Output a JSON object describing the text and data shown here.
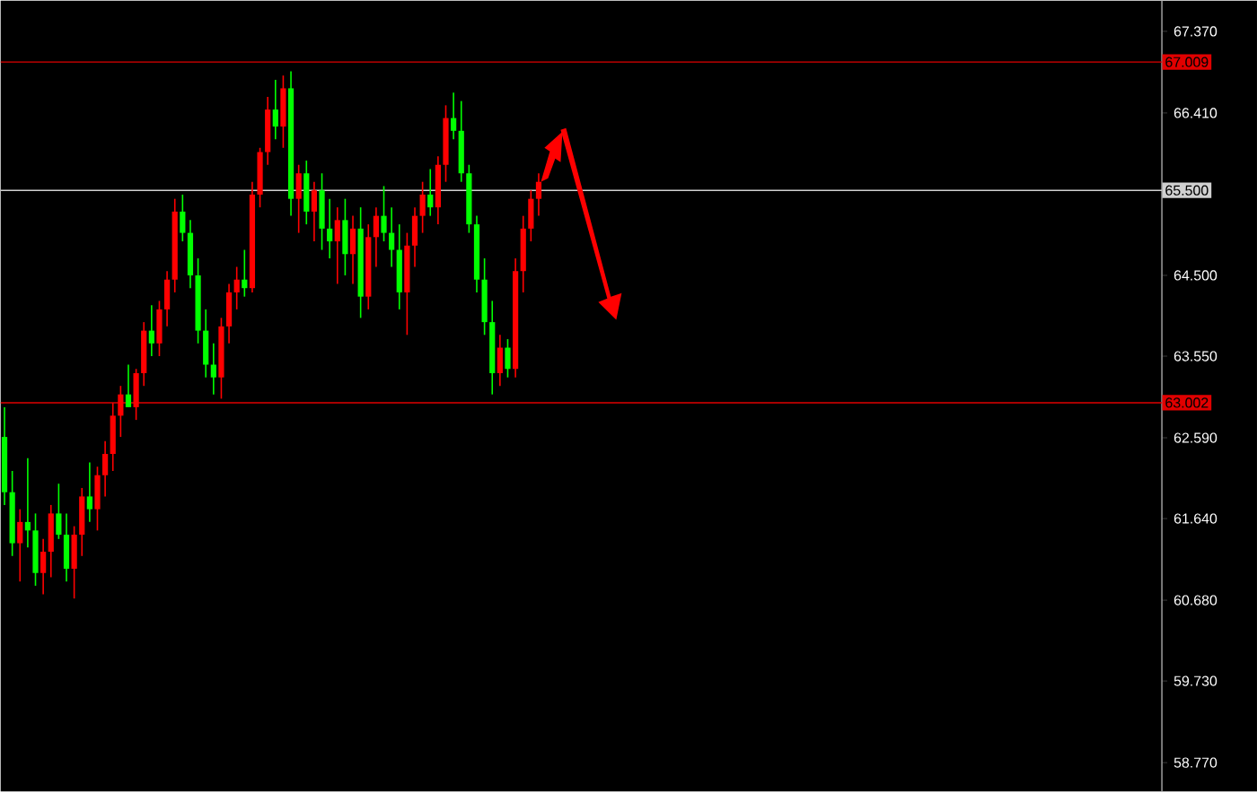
{
  "chart_data": {
    "type": "candlestick",
    "categories": [
      null,
      null,
      null,
      null,
      null,
      null,
      null,
      null,
      null,
      null,
      null,
      null,
      null,
      null,
      null,
      null,
      null,
      null,
      null,
      null,
      null,
      null,
      null,
      null,
      null,
      null,
      null,
      null,
      null,
      null,
      null,
      null,
      null,
      null,
      null,
      null,
      null,
      null,
      null,
      null,
      null,
      null,
      null,
      null,
      null,
      null,
      null,
      null,
      null,
      null,
      null,
      null,
      null,
      null,
      null,
      null,
      null,
      null,
      null,
      null,
      null,
      null,
      null,
      null,
      null,
      null,
      null,
      null,
      null,
      null,
      null,
      null,
      null,
      null,
      null,
      null,
      null,
      null,
      null,
      null,
      null,
      null,
      null,
      null,
      null,
      null,
      null,
      null,
      null,
      null,
      null,
      null,
      null,
      null,
      null,
      null,
      null,
      null,
      null,
      null,
      null,
      null,
      null,
      null,
      null,
      null,
      null,
      null,
      null,
      null,
      null,
      null,
      null,
      null,
      null,
      null,
      null,
      null,
      null,
      null,
      null,
      null,
      null,
      null,
      null,
      null,
      null,
      null,
      null,
      null,
      null,
      null,
      null,
      null,
      null,
      null,
      null,
      null,
      null,
      null,
      null,
      null,
      null,
      null,
      null,
      null,
      null,
      null,
      null,
      null
    ],
    "ohlc": [
      [
        62.6,
        62.95,
        61.8,
        61.95
      ],
      [
        61.95,
        62.2,
        61.2,
        61.35
      ],
      [
        61.35,
        61.75,
        60.9,
        61.6
      ],
      [
        61.6,
        62.35,
        61.3,
        61.5
      ],
      [
        61.5,
        61.7,
        60.85,
        61.0
      ],
      [
        61.0,
        61.4,
        60.75,
        61.25
      ],
      [
        61.25,
        61.8,
        60.95,
        61.7
      ],
      [
        61.7,
        62.05,
        61.4,
        61.45
      ],
      [
        61.45,
        61.7,
        60.9,
        61.05
      ],
      [
        61.05,
        61.55,
        60.7,
        61.45
      ],
      [
        61.45,
        62.0,
        61.2,
        61.9
      ],
      [
        61.9,
        62.3,
        61.6,
        61.75
      ],
      [
        61.75,
        62.25,
        61.5,
        62.15
      ],
      [
        62.15,
        62.55,
        61.9,
        62.4
      ],
      [
        62.4,
        63.0,
        62.2,
        62.85
      ],
      [
        62.85,
        63.2,
        62.6,
        63.1
      ],
      [
        63.1,
        63.45,
        62.95,
        62.95
      ],
      [
        62.95,
        63.4,
        62.8,
        63.35
      ],
      [
        63.35,
        63.95,
        63.2,
        63.85
      ],
      [
        63.85,
        64.15,
        63.55,
        63.7
      ],
      [
        63.7,
        64.2,
        63.55,
        64.1
      ],
      [
        64.1,
        64.55,
        63.9,
        64.45
      ],
      [
        64.45,
        65.4,
        64.3,
        65.25
      ],
      [
        65.25,
        65.45,
        64.9,
        65.0
      ],
      [
        65.0,
        65.15,
        64.35,
        64.5
      ],
      [
        64.5,
        64.7,
        63.7,
        63.85
      ],
      [
        63.85,
        64.1,
        63.3,
        63.45
      ],
      [
        63.45,
        63.7,
        63.1,
        63.3
      ],
      [
        63.3,
        64.0,
        63.05,
        63.9
      ],
      [
        63.9,
        64.4,
        63.7,
        64.3
      ],
      [
        64.3,
        64.6,
        64.1,
        64.45
      ],
      [
        64.45,
        64.8,
        64.25,
        64.35
      ],
      [
        64.35,
        65.6,
        64.3,
        65.45
      ],
      [
        65.45,
        66.0,
        65.3,
        65.95
      ],
      [
        65.95,
        66.6,
        65.8,
        66.45
      ],
      [
        66.45,
        66.8,
        66.1,
        66.25
      ],
      [
        66.25,
        66.85,
        66.0,
        66.7
      ],
      [
        66.7,
        66.9,
        65.2,
        65.4
      ],
      [
        65.4,
        65.8,
        65.0,
        65.7
      ],
      [
        65.7,
        65.85,
        65.1,
        65.25
      ],
      [
        65.25,
        65.6,
        64.9,
        65.5
      ],
      [
        65.5,
        65.7,
        64.8,
        65.05
      ],
      [
        65.05,
        65.4,
        64.7,
        64.9
      ],
      [
        64.9,
        65.3,
        64.4,
        65.15
      ],
      [
        65.15,
        65.4,
        64.5,
        64.75
      ],
      [
        64.75,
        65.2,
        64.4,
        65.05
      ],
      [
        65.05,
        65.3,
        64.0,
        64.25
      ],
      [
        64.25,
        65.1,
        64.1,
        64.95
      ],
      [
        64.95,
        65.3,
        64.6,
        65.2
      ],
      [
        65.2,
        65.55,
        64.9,
        65.0
      ],
      [
        65.0,
        65.3,
        64.6,
        64.8
      ],
      [
        64.8,
        65.1,
        64.1,
        64.3
      ],
      [
        64.3,
        65.0,
        63.8,
        64.85
      ],
      [
        64.85,
        65.3,
        64.6,
        65.2
      ],
      [
        65.2,
        65.6,
        65.0,
        65.45
      ],
      [
        65.45,
        65.75,
        65.2,
        65.3
      ],
      [
        65.3,
        65.9,
        65.1,
        65.8
      ],
      [
        65.8,
        66.5,
        65.6,
        66.35
      ],
      [
        66.35,
        66.65,
        66.1,
        66.2
      ],
      [
        66.2,
        66.55,
        65.6,
        65.7
      ],
      [
        65.7,
        65.8,
        65.0,
        65.1
      ],
      [
        65.1,
        65.2,
        64.3,
        64.45
      ],
      [
        64.45,
        64.7,
        63.8,
        63.95
      ],
      [
        63.95,
        64.2,
        63.1,
        63.35
      ],
      [
        63.35,
        63.8,
        63.2,
        63.65
      ],
      [
        63.65,
        63.75,
        63.3,
        63.4
      ],
      [
        63.4,
        64.7,
        63.3,
        64.55
      ],
      [
        64.55,
        65.2,
        64.3,
        65.05
      ],
      [
        65.05,
        65.5,
        64.9,
        65.4
      ],
      [
        65.4,
        65.7,
        65.2,
        65.6
      ],
      null,
      null,
      null,
      null,
      null,
      null,
      null,
      null,
      null,
      null,
      null,
      null,
      null,
      null,
      null,
      null,
      null,
      null,
      null,
      null,
      null,
      null,
      null,
      null,
      null,
      null,
      null,
      null,
      null,
      null,
      null,
      null,
      null,
      null,
      null,
      null,
      null,
      null,
      null,
      null,
      null,
      null,
      null,
      null,
      null,
      null,
      null,
      null,
      null,
      null,
      null,
      null,
      null,
      null,
      null,
      null,
      null,
      null,
      null,
      null,
      null,
      null,
      null,
      null,
      null,
      null,
      null,
      null,
      null,
      null,
      null,
      null,
      null,
      null,
      null,
      null,
      null,
      null,
      null,
      null
    ],
    "colors": [
      "#00ff00",
      "#00ff00",
      "#ff0000",
      "#00ff00",
      "#00ff00",
      "#ff0000",
      "#ff0000",
      "#00ff00",
      "#00ff00",
      "#ff0000",
      "#ff0000",
      "#00ff00",
      "#ff0000",
      "#ff0000",
      "#ff0000",
      "#ff0000",
      "#00ff00",
      "#ff0000",
      "#ff0000",
      "#00ff00",
      "#ff0000",
      "#ff0000",
      "#ff0000",
      "#00ff00",
      "#00ff00",
      "#00ff00",
      "#00ff00",
      "#00ff00",
      "#ff0000",
      "#ff0000",
      "#ff0000",
      "#00ff00",
      "#ff0000",
      "#ff0000",
      "#ff0000",
      "#00ff00",
      "#ff0000",
      "#00ff00",
      "#ff0000",
      "#00ff00",
      "#ff0000",
      "#00ff00",
      "#00ff00",
      "#ff0000",
      "#00ff00",
      "#ff0000",
      "#00ff00",
      "#ff0000",
      "#ff0000",
      "#00ff00",
      "#00ff00",
      "#00ff00",
      "#ff0000",
      "#ff0000",
      "#ff0000",
      "#00ff00",
      "#ff0000",
      "#ff0000",
      "#00ff00",
      "#00ff00",
      "#00ff00",
      "#00ff00",
      "#00ff00",
      "#00ff00",
      "#ff0000",
      "#00ff00",
      "#ff0000",
      "#ff0000",
      "#ff0000",
      "#ff0000",
      null,
      null,
      null,
      null,
      null,
      null,
      null,
      null,
      null,
      null,
      null,
      null,
      null,
      null,
      null,
      null,
      null,
      null,
      null,
      null,
      null,
      null,
      null,
      null,
      null,
      null,
      null,
      null,
      null,
      null,
      null,
      null,
      null,
      null,
      null,
      null,
      null,
      null,
      null,
      null,
      null,
      null,
      null,
      null,
      null,
      null,
      null,
      null,
      null,
      null,
      null,
      null,
      null,
      null,
      null,
      null,
      null,
      null,
      null,
      null,
      null,
      null,
      null,
      null,
      null,
      null,
      null,
      null,
      null,
      null,
      null,
      null,
      null,
      null,
      null,
      null,
      null,
      null,
      null,
      null
    ],
    "ylim": [
      58.43,
      67.73
    ],
    "yticks": [
      {
        "value": 58.77,
        "label": "58.770"
      },
      {
        "value": 59.73,
        "label": "59.730"
      },
      {
        "value": 60.68,
        "label": "60.680"
      },
      {
        "value": 61.64,
        "label": "61.640"
      },
      {
        "value": 62.59,
        "label": "62.590"
      },
      {
        "value": 63.55,
        "label": "63.550"
      },
      {
        "value": 64.5,
        "label": "64.500"
      },
      {
        "value": 66.41,
        "label": "66.410"
      },
      {
        "value": 67.37,
        "label": "67.370"
      }
    ],
    "ref_lines": [
      {
        "axis": "y",
        "value": 67.009,
        "label": "67.009",
        "color": "#e00000"
      },
      {
        "axis": "y",
        "value": 65.5,
        "label": "65.500",
        "color": "#d0d0d0"
      },
      {
        "axis": "y",
        "value": 63.002,
        "label": "63.002",
        "color": "#e00000"
      }
    ],
    "grid": false
  }
}
